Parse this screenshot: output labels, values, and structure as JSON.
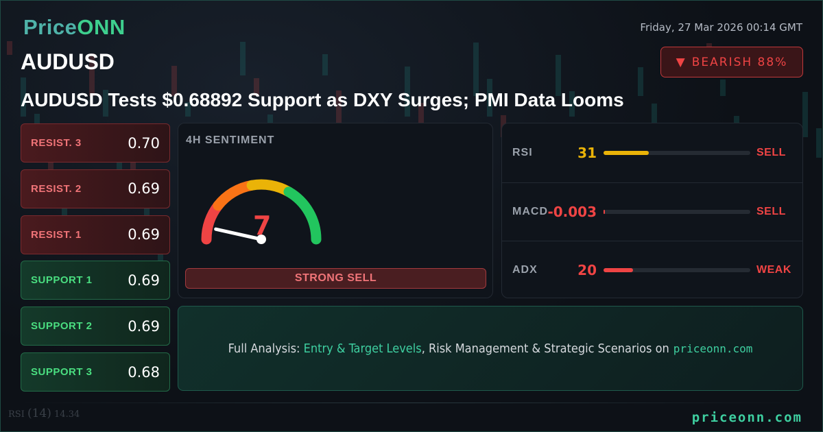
{
  "brand": {
    "name_part1": "Price",
    "name_part2": "ONN",
    "footer_site": "priceonn.com"
  },
  "date": "Friday, 27 Mar 2026 00:14 GMT",
  "symbol": "AUDUSD",
  "badge": {
    "icon": "triangle-down-icon",
    "label": "BEARISH 88%",
    "color": "#ef4444"
  },
  "headline": "AUDUSD Tests $0.68892 Support as DXY Surges; PMI Data Looms",
  "levels": [
    {
      "label": "RESIST. 3",
      "value": "0.70",
      "type": "resistance"
    },
    {
      "label": "RESIST. 2",
      "value": "0.69",
      "type": "resistance"
    },
    {
      "label": "RESIST. 1",
      "value": "0.69",
      "type": "resistance"
    },
    {
      "label": "SUPPORT 1",
      "value": "0.69",
      "type": "support"
    },
    {
      "label": "SUPPORT 2",
      "value": "0.69",
      "type": "support"
    },
    {
      "label": "SUPPORT 3",
      "value": "0.68",
      "type": "support"
    }
  ],
  "sentiment": {
    "title": "4H SENTIMENT",
    "score": "7",
    "score_fraction": 0.07,
    "label": "STRONG SELL",
    "colors": [
      "#ef4444",
      "#f97316",
      "#eab308",
      "#22c55e"
    ]
  },
  "indicators": [
    {
      "name": "RSI",
      "value": "31",
      "level_percent": 31,
      "signal": "SELL",
      "color": "#eab308"
    },
    {
      "name": "MACD",
      "value": "-0.003",
      "level_percent": 0.5,
      "signal": "SELL",
      "color": "#ef4444"
    },
    {
      "name": "ADX",
      "value": "20",
      "level_percent": 20,
      "signal": "WEAK",
      "color": "#ef4444"
    }
  ],
  "cta": {
    "prefix": "Full Analysis: ",
    "highlight": "Entry & Target Levels",
    "rest": ", Risk Management & Strategic Scenarios on",
    "site": "priceonn.com"
  },
  "background": {
    "rsi_label": "RSI",
    "rsi_period": "(14)",
    "rsi_value": "14.34"
  }
}
